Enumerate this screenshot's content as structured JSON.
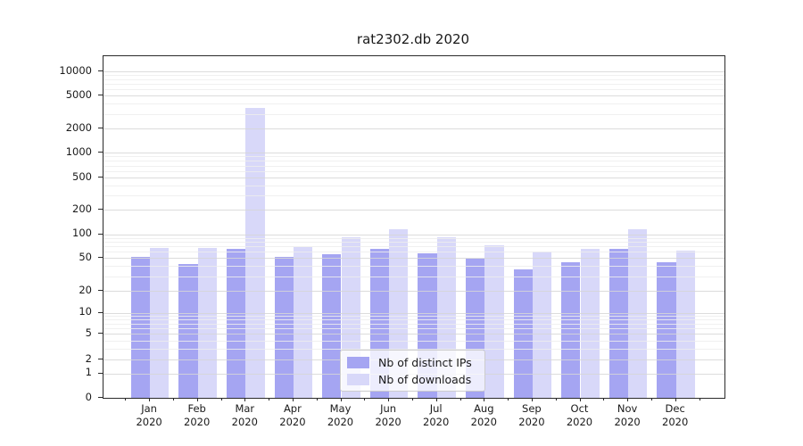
{
  "title": "rat2302.db 2020",
  "chart_data": {
    "type": "bar",
    "title": "rat2302.db 2020",
    "categories": [
      "Jan 2020",
      "Feb 2020",
      "Mar 2020",
      "Apr 2020",
      "May 2020",
      "Jun 2020",
      "Jul 2020",
      "Aug 2020",
      "Sep 2020",
      "Oct 2020",
      "Nov 2020",
      "Dec 2020"
    ],
    "series": [
      {
        "name": "Nb of distinct IPs",
        "color": "#a5a5f2",
        "values": [
          52,
          42,
          66,
          52,
          56,
          66,
          58,
          49,
          37,
          45,
          65,
          45
        ]
      },
      {
        "name": "Nb of downloads",
        "color": "#d8d8f9",
        "values": [
          67,
          68,
          3550,
          69,
          92,
          117,
          93,
          72,
          60,
          65,
          117,
          62
        ]
      }
    ],
    "xlabel": "",
    "ylabel": "",
    "yscale": "symlog",
    "yticks": [
      0,
      1,
      2,
      5,
      10,
      20,
      50,
      100,
      200,
      500,
      1000,
      2000,
      5000,
      10000
    ],
    "ylim": [
      0,
      15000
    ],
    "grid": "horizontal major and minor, drawn above bars",
    "legend_position": "lower center"
  }
}
